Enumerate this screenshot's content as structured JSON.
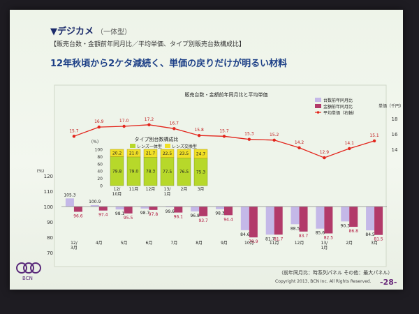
{
  "header": {
    "section_title": "▼デジカメ",
    "section_sub": "（一体型）",
    "subheading": "【販売台数・金額前年同月比／平均単価、タイプ別販売台数構成比】",
    "headline": "12年秋頃から2ケタ減続く、単価の戻りだけが明るい材料"
  },
  "footer": {
    "footnote": "（前年同月比：時系列パネル その他：最大パネル）",
    "copyright": "Copyright 2013, BCN Inc. All Rights Reserved.",
    "page": "-28-",
    "logo_text": "BCN"
  },
  "colors": {
    "units_bar": "#c4b8e8",
    "amount_bar": "#b23a6a",
    "price_line": "#e3241b",
    "lens_integrated": "#b7d82a",
    "lens_interchangeable": "#f0df26"
  },
  "chart_data": [
    {
      "type": "bar",
      "title": "販売台数・金額前年同月比と平均単価",
      "categories": [
        "12/\n3月",
        "4月",
        "5月",
        "6月",
        "7月",
        "8月",
        "9月",
        "10月",
        "11月",
        "12月",
        "13/\n1月",
        "2月",
        "3月"
      ],
      "y_axis_label": "(%)",
      "ylim": [
        70,
        120
      ],
      "y_ticks": [
        70,
        80,
        90,
        100,
        110,
        120
      ],
      "series": [
        {
          "name": "台数前年同月比",
          "values": [
            105.3,
            100.9,
            98.1,
            98.7,
            99.6,
            96.8,
            98.3,
            84.6,
            81.7,
            88.5,
            85.6,
            90.3,
            84.5
          ]
        },
        {
          "name": "金額前年同月比",
          "values": [
            96.6,
            97.4,
            95.5,
            97.8,
            96.1,
            93.7,
            94.4,
            79.9,
            81.7,
            83.7,
            82.5,
            86.8,
            81.5
          ]
        }
      ],
      "secondary": {
        "name": "平均単価（右軸）",
        "axis_label": "単価（千円）",
        "values": [
          15.7,
          16.9,
          17.0,
          17.2,
          16.7,
          15.8,
          15.7,
          15.3,
          15.2,
          14.2,
          12.9,
          14.1,
          15.1
        ],
        "y_ticks": [
          14,
          16,
          18
        ]
      },
      "legend_position": "top-right"
    },
    {
      "type": "bar",
      "stacked": true,
      "title": "タイプ別台数構成比",
      "y_axis_label": "(%)",
      "ylim": [
        0,
        100
      ],
      "y_ticks": [
        0,
        20,
        40,
        60,
        80,
        100
      ],
      "categories": [
        "12/\n10月",
        "11月",
        "12月",
        "13/\n1月",
        "2月",
        "3月"
      ],
      "series": [
        {
          "name": "レンズ一体型",
          "values": [
            79.8,
            79.0,
            78.3,
            77.5,
            76.5,
            75.3
          ]
        },
        {
          "name": "レンズ交換型",
          "values": [
            20.2,
            21.0,
            21.7,
            22.5,
            23.5,
            24.7
          ]
        }
      ],
      "legend_position": "top"
    }
  ]
}
